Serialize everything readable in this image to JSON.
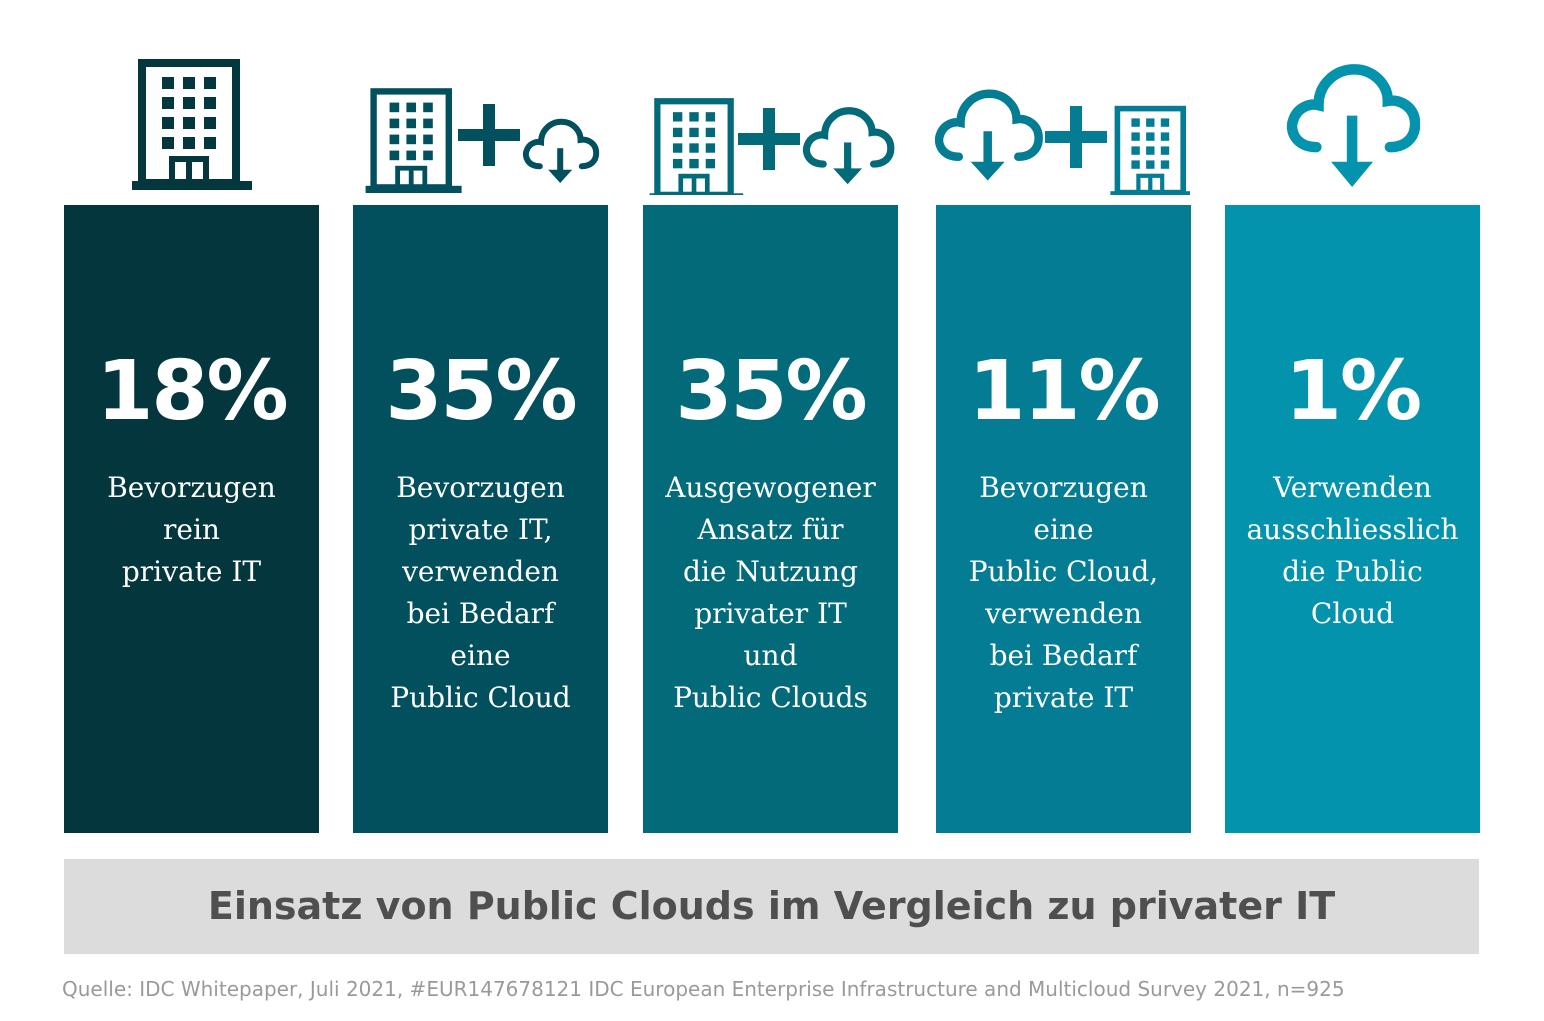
{
  "chart_data": {
    "type": "bar",
    "title": "Einsatz von Public Clouds im Vergleich zu privater IT",
    "categories": [
      "Bevorzugen rein private IT",
      "Bevorzugen private IT, verwenden bei Bedarf eine Public Cloud",
      "Ausgewogener Ansatz für die Nutzung privater IT und Public Clouds",
      "Bevorzugen eine Public Cloud, verwenden bei Bedarf private IT",
      "Verwenden ausschliesslich die Public Cloud"
    ],
    "values": [
      18,
      35,
      35,
      11,
      1
    ],
    "unit": "%"
  },
  "bars": [
    {
      "value_label": "18%",
      "desc": "Bevorzugen\nrein\nprivate IT",
      "color": "#04363e",
      "icon": "building-icon"
    },
    {
      "value_label": "35%",
      "desc": "Bevorzugen\nprivate IT,\nverwenden\nbei Bedarf\neine\nPublic Cloud",
      "color": "#02505d",
      "icon": "building-plus-cloud-icon"
    },
    {
      "value_label": "35%",
      "desc": "Ausgewogener\nAnsatz für\ndie Nutzung\nprivater IT\nund\nPublic Clouds",
      "color": "#036a79",
      "icon": "building-plus-cloud-icon"
    },
    {
      "value_label": "11%",
      "desc": "Bevorzugen\neine\nPublic Cloud,\nverwenden\nbei Bedarf\nprivate IT",
      "color": "#047d94",
      "icon": "cloud-plus-building-icon"
    },
    {
      "value_label": "1%",
      "desc": "Verwenden\nausschliesslich\ndie Public\nCloud",
      "color": "#0493ad",
      "icon": "cloud-icon"
    }
  ],
  "caption": "Einsatz von Public Clouds im Vergleich zu privater IT",
  "source": "Quelle:  IDC Whitepaper, Juli 2021, #EUR147678121 IDC European Enterprise Infrastructure and Multicloud Survey 2021, n=925"
}
